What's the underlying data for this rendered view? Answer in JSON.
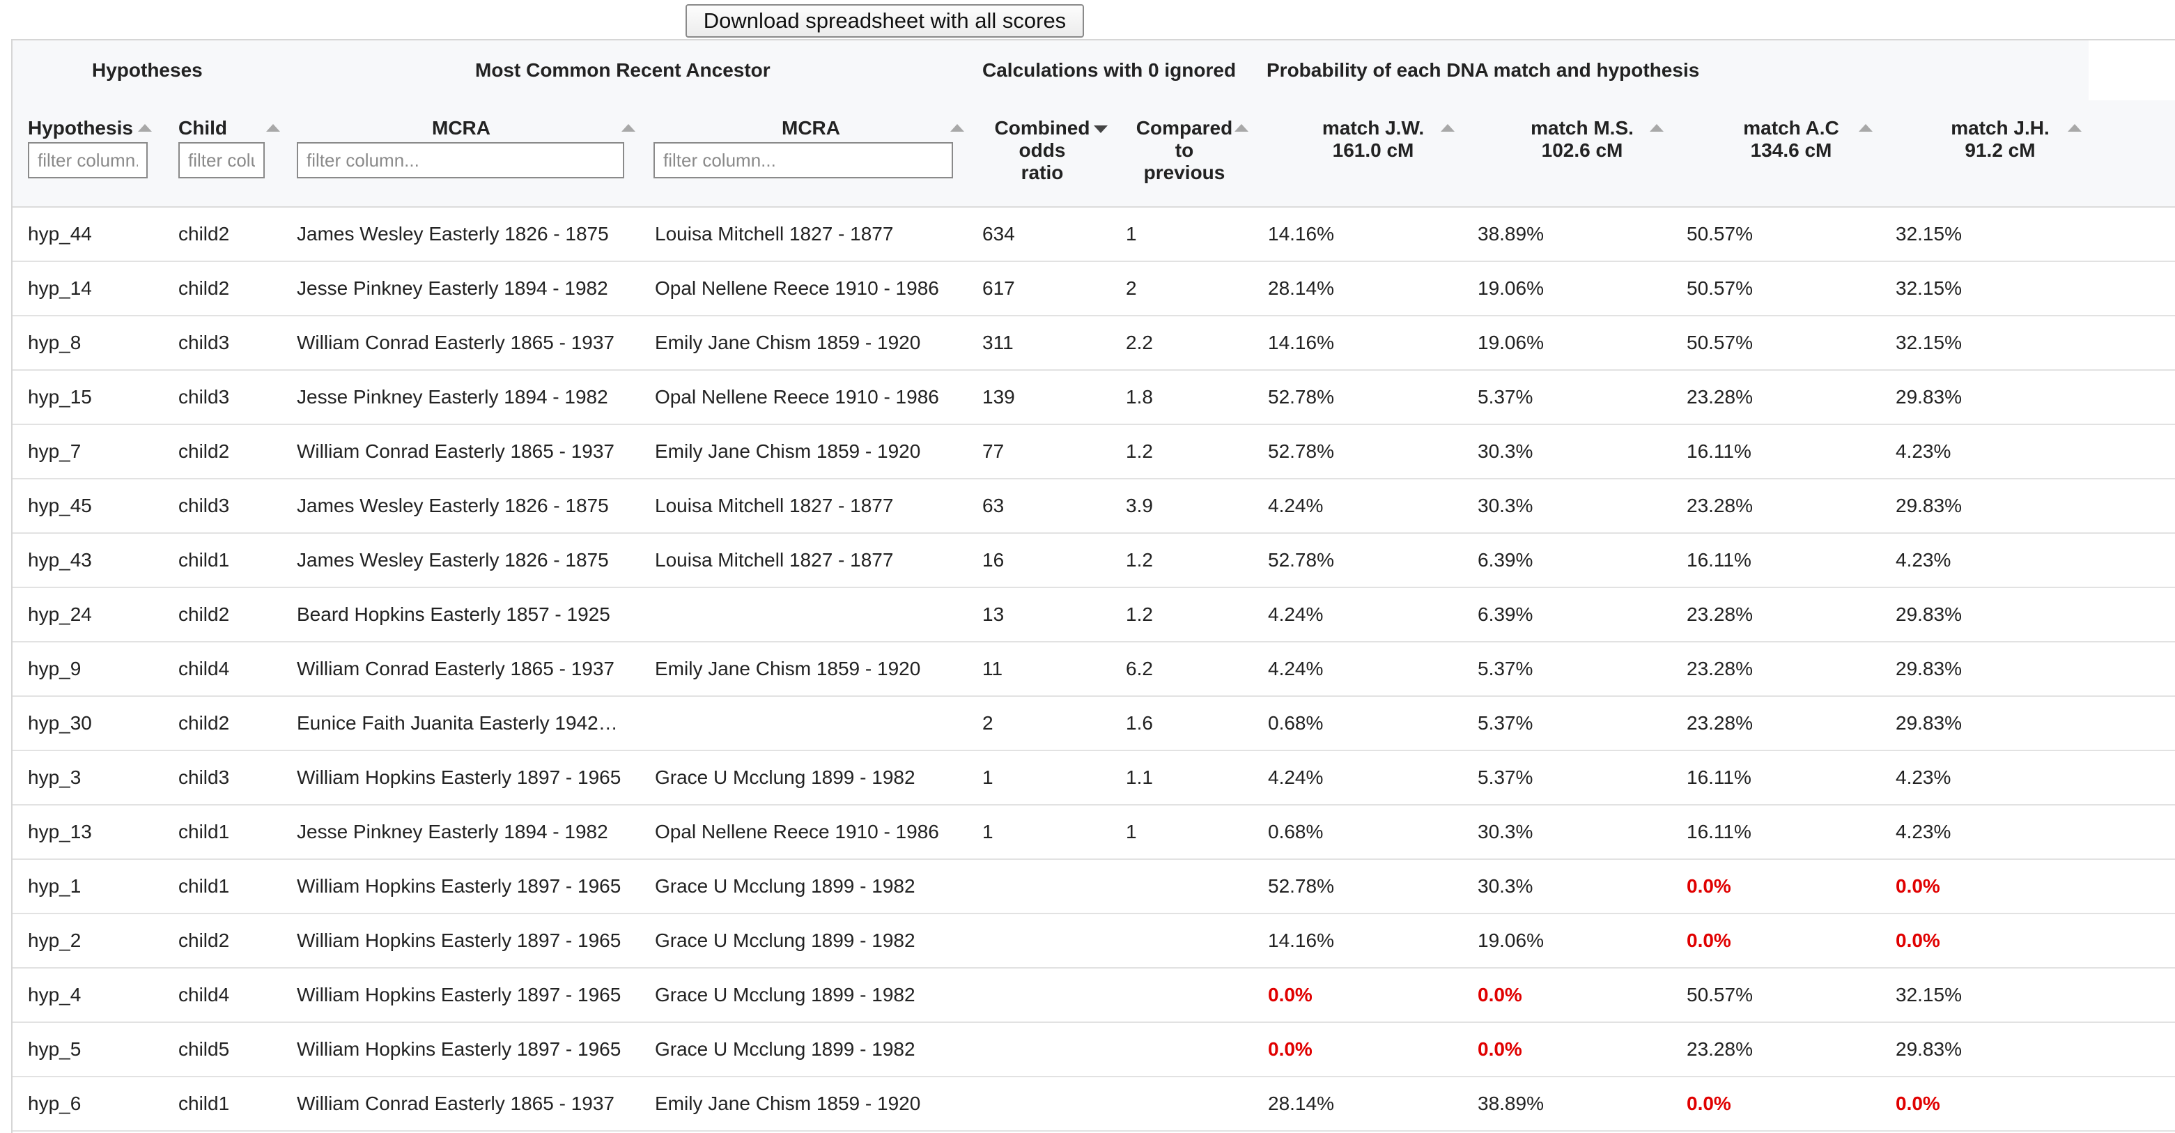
{
  "download_button": "Download spreadsheet with all scores",
  "groups": {
    "hypotheses": "Hypotheses",
    "ancestor": "Most Common Recent Ancestor",
    "calculations": "Calculations with 0 ignored",
    "probability": "Probability of each DNA match and hypothesis"
  },
  "columns": {
    "hypothesis": {
      "label": "Hypothesis",
      "placeholder": "filter column..."
    },
    "child": {
      "label": "Child",
      "placeholder": "filter column..."
    },
    "mcra1": {
      "label": "MCRA",
      "placeholder": "filter column..."
    },
    "mcra2": {
      "label": "MCRA",
      "placeholder": "filter column..."
    },
    "combined": {
      "line1": "Combined",
      "line2": "odds",
      "line3": "ratio"
    },
    "compared": {
      "line1": "Compared",
      "line2": "to",
      "line3": "previous"
    },
    "jw": {
      "line1": "match J.W.",
      "line2": "161.0 cM"
    },
    "ms": {
      "line1": "match M.S.",
      "line2": "102.6 cM"
    },
    "ac": {
      "line1": "match A.C",
      "line2": "134.6 cM"
    },
    "jh": {
      "line1": "match J.H.",
      "line2": "91.2 cM"
    }
  },
  "rows": [
    {
      "hyp": "hyp_44",
      "child": "child2",
      "mcra1": "James Wesley Easterly 1826 - 1875",
      "mcra2": "Louisa Mitchell 1827 - 1877",
      "combined": "634",
      "compared": "1",
      "jw": "14.16%",
      "ms": "38.89%",
      "ac": "50.57%",
      "jh": "32.15%"
    },
    {
      "hyp": "hyp_14",
      "child": "child2",
      "mcra1": "Jesse Pinkney Easterly 1894 - 1982",
      "mcra2": "Opal Nellene Reece 1910 - 1986",
      "combined": "617",
      "compared": "2",
      "jw": "28.14%",
      "ms": "19.06%",
      "ac": "50.57%",
      "jh": "32.15%"
    },
    {
      "hyp": "hyp_8",
      "child": "child3",
      "mcra1": "William Conrad Easterly 1865 - 1937",
      "mcra2": "Emily Jane Chism 1859 - 1920",
      "combined": "311",
      "compared": "2.2",
      "jw": "14.16%",
      "ms": "19.06%",
      "ac": "50.57%",
      "jh": "32.15%"
    },
    {
      "hyp": "hyp_15",
      "child": "child3",
      "mcra1": "Jesse Pinkney Easterly 1894 - 1982",
      "mcra2": "Opal Nellene Reece 1910 - 1986",
      "combined": "139",
      "compared": "1.8",
      "jw": "52.78%",
      "ms": "5.37%",
      "ac": "23.28%",
      "jh": "29.83%"
    },
    {
      "hyp": "hyp_7",
      "child": "child2",
      "mcra1": "William Conrad Easterly 1865 - 1937",
      "mcra2": "Emily Jane Chism 1859 - 1920",
      "combined": "77",
      "compared": "1.2",
      "jw": "52.78%",
      "ms": "30.3%",
      "ac": "16.11%",
      "jh": "4.23%"
    },
    {
      "hyp": "hyp_45",
      "child": "child3",
      "mcra1": "James Wesley Easterly 1826 - 1875",
      "mcra2": "Louisa Mitchell 1827 - 1877",
      "combined": "63",
      "compared": "3.9",
      "jw": "4.24%",
      "ms": "30.3%",
      "ac": "23.28%",
      "jh": "29.83%"
    },
    {
      "hyp": "hyp_43",
      "child": "child1",
      "mcra1": "James Wesley Easterly 1826 - 1875",
      "mcra2": "Louisa Mitchell 1827 - 1877",
      "combined": "16",
      "compared": "1.2",
      "jw": "52.78%",
      "ms": "6.39%",
      "ac": "16.11%",
      "jh": "4.23%"
    },
    {
      "hyp": "hyp_24",
      "child": "child2",
      "mcra1": "Beard Hopkins Easterly 1857 - 1925",
      "mcra2": "",
      "combined": "13",
      "compared": "1.2",
      "jw": "4.24%",
      "ms": "6.39%",
      "ac": "23.28%",
      "jh": "29.83%"
    },
    {
      "hyp": "hyp_9",
      "child": "child4",
      "mcra1": "William Conrad Easterly 1865 - 1937",
      "mcra2": "Emily Jane Chism 1859 - 1920",
      "combined": "11",
      "compared": "6.2",
      "jw": "4.24%",
      "ms": "5.37%",
      "ac": "23.28%",
      "jh": "29.83%"
    },
    {
      "hyp": "hyp_30",
      "child": "child2",
      "mcra1": "Eunice Faith Juanita Easterly 1942…",
      "mcra2": "",
      "combined": "2",
      "compared": "1.6",
      "jw": "0.68%",
      "ms": "5.37%",
      "ac": "23.28%",
      "jh": "29.83%"
    },
    {
      "hyp": "hyp_3",
      "child": "child3",
      "mcra1": "William Hopkins Easterly 1897 - 1965",
      "mcra2": "Grace U Mcclung 1899 - 1982",
      "combined": "1",
      "compared": "1.1",
      "jw": "4.24%",
      "ms": "5.37%",
      "ac": "16.11%",
      "jh": "4.23%"
    },
    {
      "hyp": "hyp_13",
      "child": "child1",
      "mcra1": "Jesse Pinkney Easterly 1894 - 1982",
      "mcra2": "Opal Nellene Reece 1910 - 1986",
      "combined": "1",
      "compared": "1",
      "jw": "0.68%",
      "ms": "30.3%",
      "ac": "16.11%",
      "jh": "4.23%"
    },
    {
      "hyp": "hyp_1",
      "child": "child1",
      "mcra1": "William Hopkins Easterly 1897 - 1965",
      "mcra2": "Grace U Mcclung 1899 - 1982",
      "combined": "",
      "compared": "",
      "jw": "52.78%",
      "ms": "30.3%",
      "ac": "0.0%",
      "jh": "0.0%"
    },
    {
      "hyp": "hyp_2",
      "child": "child2",
      "mcra1": "William Hopkins Easterly 1897 - 1965",
      "mcra2": "Grace U Mcclung 1899 - 1982",
      "combined": "",
      "compared": "",
      "jw": "14.16%",
      "ms": "19.06%",
      "ac": "0.0%",
      "jh": "0.0%"
    },
    {
      "hyp": "hyp_4",
      "child": "child4",
      "mcra1": "William Hopkins Easterly 1897 - 1965",
      "mcra2": "Grace U Mcclung 1899 - 1982",
      "combined": "",
      "compared": "",
      "jw": "0.0%",
      "ms": "0.0%",
      "ac": "50.57%",
      "jh": "32.15%"
    },
    {
      "hyp": "hyp_5",
      "child": "child5",
      "mcra1": "William Hopkins Easterly 1897 - 1965",
      "mcra2": "Grace U Mcclung 1899 - 1982",
      "combined": "",
      "compared": "",
      "jw": "0.0%",
      "ms": "0.0%",
      "ac": "23.28%",
      "jh": "29.83%"
    },
    {
      "hyp": "hyp_6",
      "child": "child1",
      "mcra1": "William Conrad Easterly 1865 - 1937",
      "mcra2": "Emily Jane Chism 1859 - 1920",
      "combined": "",
      "compared": "",
      "jw": "28.14%",
      "ms": "38.89%",
      "ac": "0.0%",
      "jh": "0.0%"
    }
  ],
  "colors": {
    "zero_value": "#e00000",
    "header_bg": "#f7f8fa"
  }
}
